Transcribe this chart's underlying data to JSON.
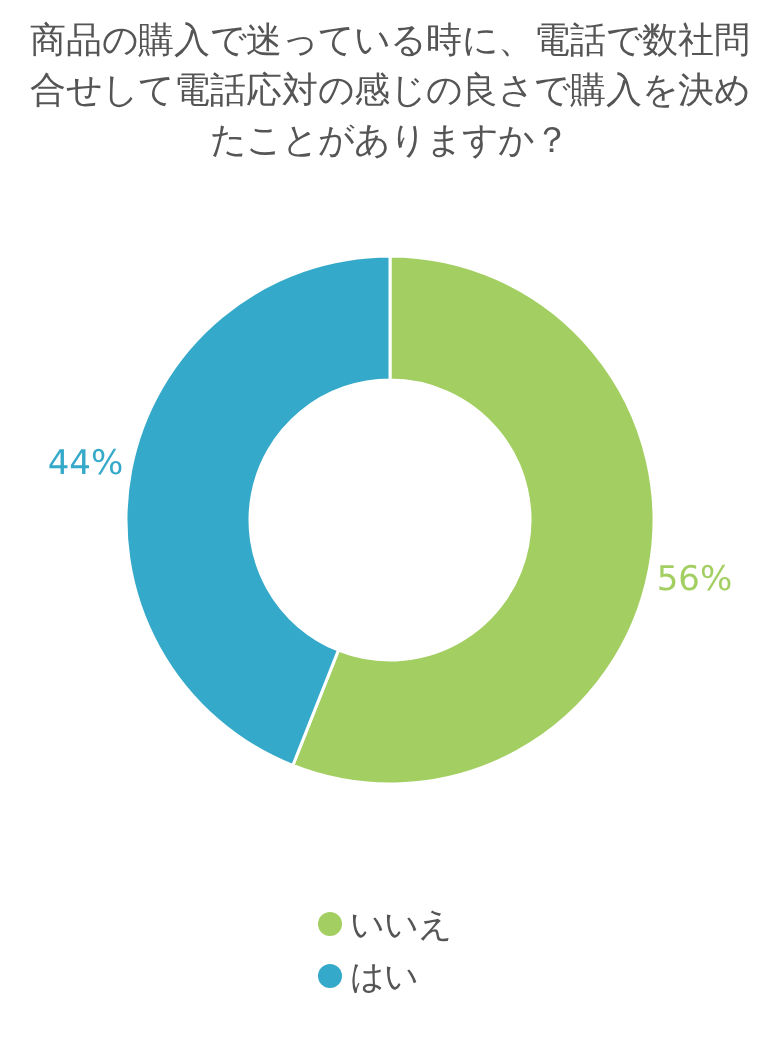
{
  "chart_data": {
    "type": "donut",
    "title": "商品の購入で迷っている時に、電話で数社問合せして電話応対の感じの良さで購入を決めたことがありますか？",
    "categories": [
      "いいえ",
      "はい"
    ],
    "values": [
      56,
      44
    ],
    "colors": [
      "#a3cf62",
      "#35a9c9"
    ],
    "value_labels": [
      "56%",
      "44%"
    ],
    "legend": "bottom"
  }
}
